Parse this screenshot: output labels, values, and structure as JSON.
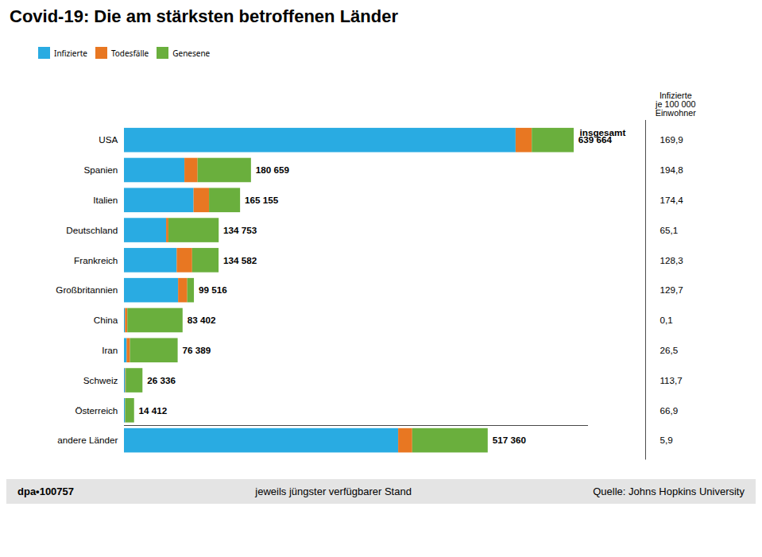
{
  "chart_data": {
    "type": "bar",
    "orientation": "horizontal",
    "stacked": true,
    "title": "Covid-19: Die am stärksten betroffenen Länder",
    "categories": [
      "USA",
      "Spanien",
      "Italien",
      "Deutschland",
      "Frankreich",
      "Großbritannien",
      "China",
      "Iran",
      "Schweiz",
      "Österreich",
      "andere Länder"
    ],
    "series": [
      {
        "name": "Infizierte",
        "color": "#29ABE2",
        "values": [
          557000,
          86000,
          99000,
          60000,
          75000,
          77000,
          1450,
          3800,
          1700,
          1400,
          390000
        ]
      },
      {
        "name": "Todesfälle",
        "color": "#E87722",
        "values": [
          23000,
          18700,
          22000,
          3200,
          22000,
          13000,
          3340,
          4700,
          756,
          330,
          20000
        ]
      },
      {
        "name": "Genesene",
        "color": "#6AAF3D",
        "values": [
          59664,
          75959,
          44155,
          71553,
          37582,
          9516,
          78612,
          67889,
          23880,
          12682,
          107360
        ]
      }
    ],
    "totals": [
      639664,
      180659,
      165155,
      134753,
      134582,
      99516,
      83402,
      76389,
      26336,
      14412,
      517360
    ],
    "total_labels": [
      "639 664",
      "180 659",
      "165 155",
      "134 753",
      "134 582",
      "99 516",
      "83 402",
      "76 389",
      "26 336",
      "14 412",
      "517 360"
    ],
    "totals_header": "insgesamt",
    "per_100k_header": "Infizierte\nje 100 000\nEinwohner",
    "per_100k_labels": [
      "169,9",
      "194,8",
      "174,4",
      "65,1",
      "128,3",
      "129,7",
      "0,1",
      "26,5",
      "113,7",
      "66,9",
      "5,9"
    ],
    "footer": [
      "dpa•100757",
      "jeweils jüngster verfügbarer Stand",
      "Quelle: Johns Hopkins University"
    ],
    "xlim": [
      0,
      660000
    ],
    "tick_labels": "y",
    "grid": false,
    "legend": "top-left"
  }
}
